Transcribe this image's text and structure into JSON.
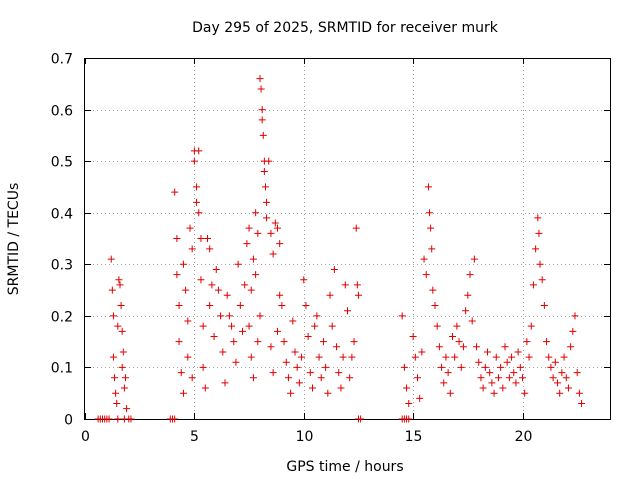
{
  "chart_data": {
    "type": "scatter",
    "title": "Day 295 of 2025, SRMTID for receiver murk",
    "xlabel": "GPS time / hours",
    "ylabel": "SRMTID / TECUs",
    "xlim": [
      0,
      24
    ],
    "ylim": [
      0,
      0.7
    ],
    "xticks": [
      0,
      5,
      10,
      15,
      20
    ],
    "yticks": [
      0,
      0.1,
      0.2,
      0.3,
      0.4,
      0.5,
      0.6,
      0.7
    ],
    "xtick_labels": [
      "0",
      "5",
      "10",
      "15",
      "20"
    ],
    "ytick_labels": [
      "0",
      "0.1",
      "0.2",
      "0.3",
      "0.4",
      "0.5",
      "0.6",
      "0.7"
    ],
    "grid": true,
    "marker": "+",
    "color": "#e00000",
    "series": [
      {
        "name": "SRMTID",
        "points": [
          [
            0.6,
            0
          ],
          [
            0.7,
            0
          ],
          [
            0.8,
            0
          ],
          [
            0.9,
            0
          ],
          [
            1.0,
            0
          ],
          [
            1.1,
            0
          ],
          [
            1.5,
            0
          ],
          [
            1.8,
            0
          ],
          [
            2.0,
            0
          ],
          [
            2.1,
            0
          ],
          [
            3.9,
            0
          ],
          [
            4.0,
            0
          ],
          [
            4.1,
            0
          ],
          [
            12.5,
            0
          ],
          [
            12.6,
            0
          ],
          [
            14.5,
            0
          ],
          [
            14.6,
            0
          ],
          [
            14.7,
            0
          ],
          [
            14.8,
            0
          ],
          [
            1.2,
            0.31
          ],
          [
            1.25,
            0.25
          ],
          [
            1.3,
            0.2
          ],
          [
            1.3,
            0.12
          ],
          [
            1.35,
            0.08
          ],
          [
            1.4,
            0.05
          ],
          [
            1.45,
            0.03
          ],
          [
            1.5,
            0.18
          ],
          [
            1.55,
            0.27
          ],
          [
            1.6,
            0.26
          ],
          [
            1.65,
            0.22
          ],
          [
            1.7,
            0.17
          ],
          [
            1.7,
            0.1
          ],
          [
            1.75,
            0.13
          ],
          [
            1.8,
            0.06
          ],
          [
            1.85,
            0.08
          ],
          [
            1.9,
            0.02
          ],
          [
            4.1,
            0.44
          ],
          [
            4.2,
            0.35
          ],
          [
            4.2,
            0.28
          ],
          [
            4.3,
            0.22
          ],
          [
            4.3,
            0.15
          ],
          [
            4.4,
            0.09
          ],
          [
            4.5,
            0.05
          ],
          [
            4.5,
            0.3
          ],
          [
            4.6,
            0.25
          ],
          [
            4.7,
            0.19
          ],
          [
            4.7,
            0.12
          ],
          [
            4.8,
            0.37
          ],
          [
            4.9,
            0.33
          ],
          [
            4.9,
            0.08
          ],
          [
            5.0,
            0.52
          ],
          [
            5.0,
            0.5
          ],
          [
            5.1,
            0.45
          ],
          [
            5.1,
            0.42
          ],
          [
            5.2,
            0.52
          ],
          [
            5.2,
            0.4
          ],
          [
            5.3,
            0.35
          ],
          [
            5.3,
            0.27
          ],
          [
            5.4,
            0.18
          ],
          [
            5.4,
            0.1
          ],
          [
            5.5,
            0.06
          ],
          [
            5.6,
            0.35
          ],
          [
            5.7,
            0.33
          ],
          [
            5.7,
            0.22
          ],
          [
            5.8,
            0.26
          ],
          [
            5.9,
            0.16
          ],
          [
            6.0,
            0.29
          ],
          [
            6.1,
            0.25
          ],
          [
            6.2,
            0.2
          ],
          [
            6.3,
            0.13
          ],
          [
            6.4,
            0.07
          ],
          [
            6.5,
            0.24
          ],
          [
            6.6,
            0.2
          ],
          [
            6.7,
            0.18
          ],
          [
            6.8,
            0.15
          ],
          [
            6.9,
            0.11
          ],
          [
            7.0,
            0.3
          ],
          [
            7.1,
            0.22
          ],
          [
            7.2,
            0.17
          ],
          [
            7.3,
            0.26
          ],
          [
            7.4,
            0.34
          ],
          [
            7.5,
            0.37
          ],
          [
            7.6,
            0.25
          ],
          [
            7.7,
            0.31
          ],
          [
            7.8,
            0.28
          ],
          [
            7.8,
            0.4
          ],
          [
            7.9,
            0.36
          ],
          [
            8.0,
            0.66
          ],
          [
            8.05,
            0.64
          ],
          [
            8.1,
            0.6
          ],
          [
            8.1,
            0.58
          ],
          [
            8.15,
            0.55
          ],
          [
            8.2,
            0.5
          ],
          [
            8.2,
            0.48
          ],
          [
            8.25,
            0.45
          ],
          [
            8.3,
            0.42
          ],
          [
            8.3,
            0.39
          ],
          [
            8.4,
            0.5
          ],
          [
            8.5,
            0.36
          ],
          [
            8.6,
            0.32
          ],
          [
            8.7,
            0.38
          ],
          [
            8.8,
            0.37
          ],
          [
            8.9,
            0.34
          ],
          [
            8.9,
            0.24
          ],
          [
            7.5,
            0.18
          ],
          [
            7.6,
            0.12
          ],
          [
            7.7,
            0.08
          ],
          [
            7.9,
            0.15
          ],
          [
            8.0,
            0.2
          ],
          [
            8.5,
            0.14
          ],
          [
            8.6,
            0.09
          ],
          [
            8.8,
            0.17
          ],
          [
            9.0,
            0.22
          ],
          [
            9.1,
            0.15
          ],
          [
            9.2,
            0.11
          ],
          [
            9.3,
            0.08
          ],
          [
            9.4,
            0.05
          ],
          [
            9.5,
            0.19
          ],
          [
            9.6,
            0.13
          ],
          [
            9.7,
            0.1
          ],
          [
            9.8,
            0.07
          ],
          [
            9.9,
            0.12
          ],
          [
            10.0,
            0.27
          ],
          [
            10.1,
            0.22
          ],
          [
            10.2,
            0.16
          ],
          [
            10.3,
            0.09
          ],
          [
            10.4,
            0.06
          ],
          [
            10.5,
            0.18
          ],
          [
            10.6,
            0.2
          ],
          [
            10.7,
            0.12
          ],
          [
            10.8,
            0.08
          ],
          [
            10.9,
            0.15
          ],
          [
            11.0,
            0.1
          ],
          [
            11.1,
            0.05
          ],
          [
            11.2,
            0.24
          ],
          [
            11.3,
            0.18
          ],
          [
            11.4,
            0.29
          ],
          [
            11.5,
            0.14
          ],
          [
            11.6,
            0.09
          ],
          [
            11.7,
            0.06
          ],
          [
            11.8,
            0.12
          ],
          [
            11.9,
            0.26
          ],
          [
            12.0,
            0.21
          ],
          [
            12.1,
            0.08
          ],
          [
            12.2,
            0.12
          ],
          [
            12.3,
            0.15
          ],
          [
            12.4,
            0.37
          ],
          [
            12.45,
            0.26
          ],
          [
            12.5,
            0.24
          ],
          [
            14.5,
            0.2
          ],
          [
            14.6,
            0.1
          ],
          [
            14.7,
            0.06
          ],
          [
            14.8,
            0.03
          ],
          [
            15.0,
            0.16
          ],
          [
            15.1,
            0.12
          ],
          [
            15.2,
            0.08
          ],
          [
            15.3,
            0.04
          ],
          [
            15.4,
            0.13
          ],
          [
            15.5,
            0.31
          ],
          [
            15.6,
            0.28
          ],
          [
            15.7,
            0.45
          ],
          [
            15.75,
            0.4
          ],
          [
            15.8,
            0.37
          ],
          [
            15.85,
            0.33
          ],
          [
            15.9,
            0.25
          ],
          [
            16.0,
            0.22
          ],
          [
            16.1,
            0.18
          ],
          [
            16.2,
            0.14
          ],
          [
            16.3,
            0.1
          ],
          [
            16.4,
            0.07
          ],
          [
            16.5,
            0.12
          ],
          [
            16.6,
            0.09
          ],
          [
            16.7,
            0.05
          ],
          [
            16.8,
            0.16
          ],
          [
            16.9,
            0.12
          ],
          [
            17.0,
            0.18
          ],
          [
            17.1,
            0.15
          ],
          [
            17.2,
            0.1
          ],
          [
            17.3,
            0.14
          ],
          [
            17.4,
            0.21
          ],
          [
            17.5,
            0.24
          ],
          [
            17.6,
            0.28
          ],
          [
            17.7,
            0.19
          ],
          [
            17.8,
            0.31
          ],
          [
            17.9,
            0.14
          ],
          [
            18.0,
            0.11
          ],
          [
            18.1,
            0.08
          ],
          [
            18.2,
            0.06
          ],
          [
            18.3,
            0.1
          ],
          [
            18.4,
            0.13
          ],
          [
            18.5,
            0.09
          ],
          [
            18.6,
            0.07
          ],
          [
            18.7,
            0.05
          ],
          [
            18.8,
            0.12
          ],
          [
            18.9,
            0.08
          ],
          [
            19.0,
            0.1
          ],
          [
            19.1,
            0.06
          ],
          [
            19.2,
            0.14
          ],
          [
            19.3,
            0.11
          ],
          [
            19.4,
            0.08
          ],
          [
            19.5,
            0.12
          ],
          [
            19.6,
            0.09
          ],
          [
            19.7,
            0.07
          ],
          [
            19.8,
            0.13
          ],
          [
            19.9,
            0.1
          ],
          [
            20.0,
            0.08
          ],
          [
            20.1,
            0.05
          ],
          [
            20.2,
            0.15
          ],
          [
            20.3,
            0.12
          ],
          [
            20.4,
            0.18
          ],
          [
            20.5,
            0.26
          ],
          [
            20.6,
            0.33
          ],
          [
            20.7,
            0.39
          ],
          [
            20.75,
            0.36
          ],
          [
            20.8,
            0.3
          ],
          [
            20.9,
            0.27
          ],
          [
            21.0,
            0.22
          ],
          [
            21.1,
            0.15
          ],
          [
            21.2,
            0.12
          ],
          [
            21.3,
            0.1
          ],
          [
            21.4,
            0.08
          ],
          [
            21.5,
            0.11
          ],
          [
            21.6,
            0.07
          ],
          [
            21.7,
            0.05
          ],
          [
            21.8,
            0.09
          ],
          [
            21.9,
            0.12
          ],
          [
            22.0,
            0.08
          ],
          [
            22.1,
            0.06
          ],
          [
            22.2,
            0.14
          ],
          [
            22.3,
            0.17
          ],
          [
            22.4,
            0.2
          ],
          [
            22.5,
            0.09
          ],
          [
            22.6,
            0.05
          ],
          [
            22.7,
            0.03
          ]
        ]
      }
    ]
  }
}
